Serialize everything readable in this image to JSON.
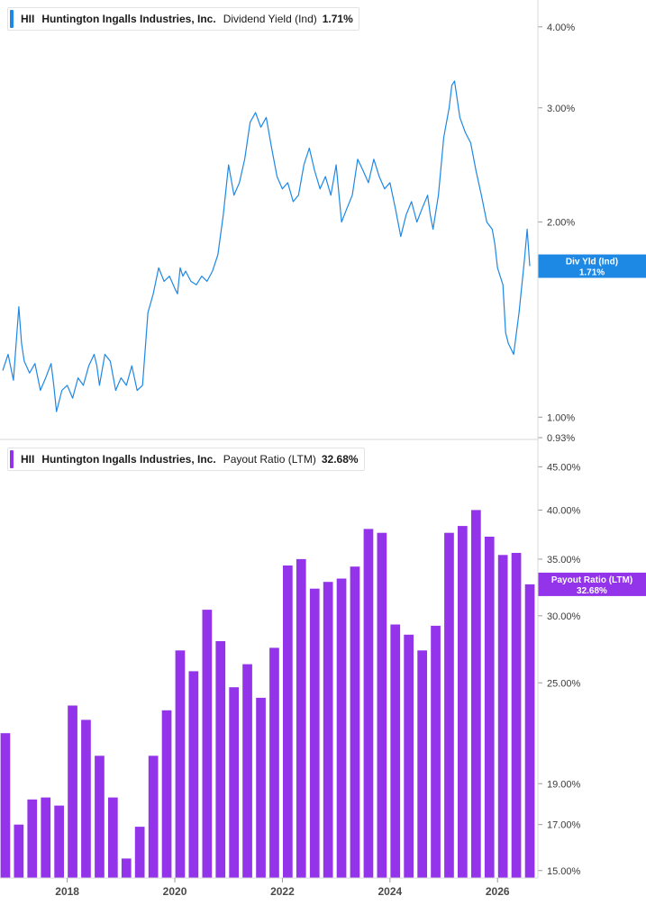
{
  "chart_data": [
    {
      "type": "line",
      "legend": {
        "ticker": "HII",
        "company": "Huntington Ingalls Industries, Inc.",
        "metric": "Dividend Yield (Ind)",
        "value": "1.71%"
      },
      "color": "#1e88e5",
      "scale": "log",
      "ylim": [
        0.93,
        4.4
      ],
      "y_ticks": [
        {
          "value": 4.0,
          "label": "4.00%"
        },
        {
          "value": 3.0,
          "label": "3.00%"
        },
        {
          "value": 2.0,
          "label": "2.00%"
        },
        {
          "value": 1.0,
          "label": "1.00%"
        },
        {
          "value": 0.93,
          "label": "0.93%"
        }
      ],
      "flag": {
        "label": "Div Yld (Ind)",
        "value": "1.71%",
        "y": 1.71
      },
      "x": [
        2016.8,
        2016.9,
        2017.0,
        2017.1,
        2017.15,
        2017.2,
        2017.3,
        2017.4,
        2017.5,
        2017.6,
        2017.7,
        2017.75,
        2017.8,
        2017.9,
        2018.0,
        2018.1,
        2018.2,
        2018.3,
        2018.4,
        2018.5,
        2018.55,
        2018.6,
        2018.7,
        2018.8,
        2018.9,
        2019.0,
        2019.1,
        2019.2,
        2019.3,
        2019.4,
        2019.5,
        2019.6,
        2019.7,
        2019.8,
        2019.9,
        2020.0,
        2020.05,
        2020.1,
        2020.15,
        2020.2,
        2020.3,
        2020.4,
        2020.5,
        2020.6,
        2020.7,
        2020.8,
        2020.9,
        2021.0,
        2021.1,
        2021.2,
        2021.3,
        2021.4,
        2021.5,
        2021.6,
        2021.7,
        2021.8,
        2021.9,
        2022.0,
        2022.1,
        2022.2,
        2022.3,
        2022.4,
        2022.5,
        2022.6,
        2022.7,
        2022.8,
        2022.9,
        2023.0,
        2023.1,
        2023.2,
        2023.3,
        2023.4,
        2023.5,
        2023.6,
        2023.7,
        2023.8,
        2023.9,
        2024.0,
        2024.1,
        2024.2,
        2024.3,
        2024.4,
        2024.5,
        2024.6,
        2024.7,
        2024.75,
        2024.8,
        2024.9,
        2025.0,
        2025.1,
        2025.15,
        2025.2,
        2025.3,
        2025.4,
        2025.5,
        2025.6,
        2025.7,
        2025.8,
        2025.9,
        2025.95,
        2026.0,
        2026.1,
        2026.15,
        2026.2,
        2026.3,
        2026.4,
        2026.5,
        2026.55,
        2026.6
      ],
      "y": [
        1.18,
        1.25,
        1.14,
        1.48,
        1.3,
        1.22,
        1.17,
        1.21,
        1.1,
        1.15,
        1.21,
        1.12,
        1.02,
        1.1,
        1.12,
        1.07,
        1.15,
        1.12,
        1.2,
        1.25,
        1.2,
        1.12,
        1.25,
        1.22,
        1.1,
        1.15,
        1.12,
        1.2,
        1.1,
        1.12,
        1.45,
        1.55,
        1.7,
        1.62,
        1.65,
        1.58,
        1.55,
        1.7,
        1.65,
        1.68,
        1.62,
        1.6,
        1.65,
        1.62,
        1.68,
        1.78,
        2.05,
        2.45,
        2.2,
        2.3,
        2.5,
        2.85,
        2.95,
        2.8,
        2.9,
        2.6,
        2.35,
        2.25,
        2.3,
        2.15,
        2.2,
        2.45,
        2.6,
        2.4,
        2.25,
        2.35,
        2.2,
        2.45,
        2.0,
        2.1,
        2.2,
        2.5,
        2.4,
        2.3,
        2.5,
        2.35,
        2.25,
        2.3,
        2.1,
        1.9,
        2.05,
        2.15,
        2.0,
        2.1,
        2.2,
        2.05,
        1.95,
        2.2,
        2.7,
        3.0,
        3.25,
        3.3,
        2.9,
        2.75,
        2.65,
        2.4,
        2.2,
        2.0,
        1.95,
        1.85,
        1.7,
        1.6,
        1.35,
        1.3,
        1.25,
        1.45,
        1.75,
        1.95,
        1.71
      ]
    },
    {
      "type": "bar",
      "legend": {
        "ticker": "HII",
        "company": "Huntington Ingalls Industries, Inc.",
        "metric": "Payout Ratio (LTM)",
        "value": "32.68%"
      },
      "color": "#9333ea",
      "scale": "log",
      "ylim": [
        14.7,
        48
      ],
      "y_ticks": [
        {
          "value": 45,
          "label": "45.00%"
        },
        {
          "value": 40,
          "label": "40.00%"
        },
        {
          "value": 35,
          "label": "35.00%"
        },
        {
          "value": 30,
          "label": "30.00%"
        },
        {
          "value": 25,
          "label": "25.00%"
        },
        {
          "value": 19,
          "label": "19.00%"
        },
        {
          "value": 17,
          "label": "17.00%"
        },
        {
          "value": 15,
          "label": "15.00%"
        }
      ],
      "flag": {
        "label": "Payout Ratio (LTM)",
        "value": "32.68%",
        "y": 32.68
      },
      "x": [
        2016.85,
        2017.1,
        2017.35,
        2017.6,
        2017.85,
        2018.1,
        2018.35,
        2018.6,
        2018.85,
        2019.1,
        2019.35,
        2019.6,
        2019.85,
        2020.1,
        2020.35,
        2020.6,
        2020.85,
        2021.1,
        2021.35,
        2021.6,
        2021.85,
        2022.1,
        2022.35,
        2022.6,
        2022.85,
        2023.1,
        2023.35,
        2023.6,
        2023.85,
        2024.1,
        2024.35,
        2024.6,
        2024.85,
        2025.1,
        2025.35,
        2025.6,
        2025.85,
        2026.1,
        2026.35,
        2026.6
      ],
      "values": [
        21.8,
        17.0,
        18.2,
        18.3,
        17.9,
        23.5,
        22.6,
        20.5,
        18.3,
        15.5,
        16.9,
        20.5,
        23.2,
        27.3,
        25.8,
        30.5,
        28.0,
        24.7,
        26.3,
        24.0,
        27.5,
        34.4,
        35.0,
        32.3,
        32.9,
        33.2,
        34.3,
        38.0,
        37.6,
        29.3,
        28.5,
        27.3,
        29.2,
        37.6,
        38.3,
        40.0,
        37.2,
        35.4,
        35.6,
        32.68
      ],
      "x_ticks": [
        {
          "value": 2018,
          "label": "2018"
        },
        {
          "value": 2020,
          "label": "2020"
        },
        {
          "value": 2022,
          "label": "2022"
        },
        {
          "value": 2024,
          "label": "2024"
        },
        {
          "value": 2026,
          "label": "2026"
        }
      ],
      "xlim": [
        2016.75,
        2026.75
      ]
    }
  ]
}
